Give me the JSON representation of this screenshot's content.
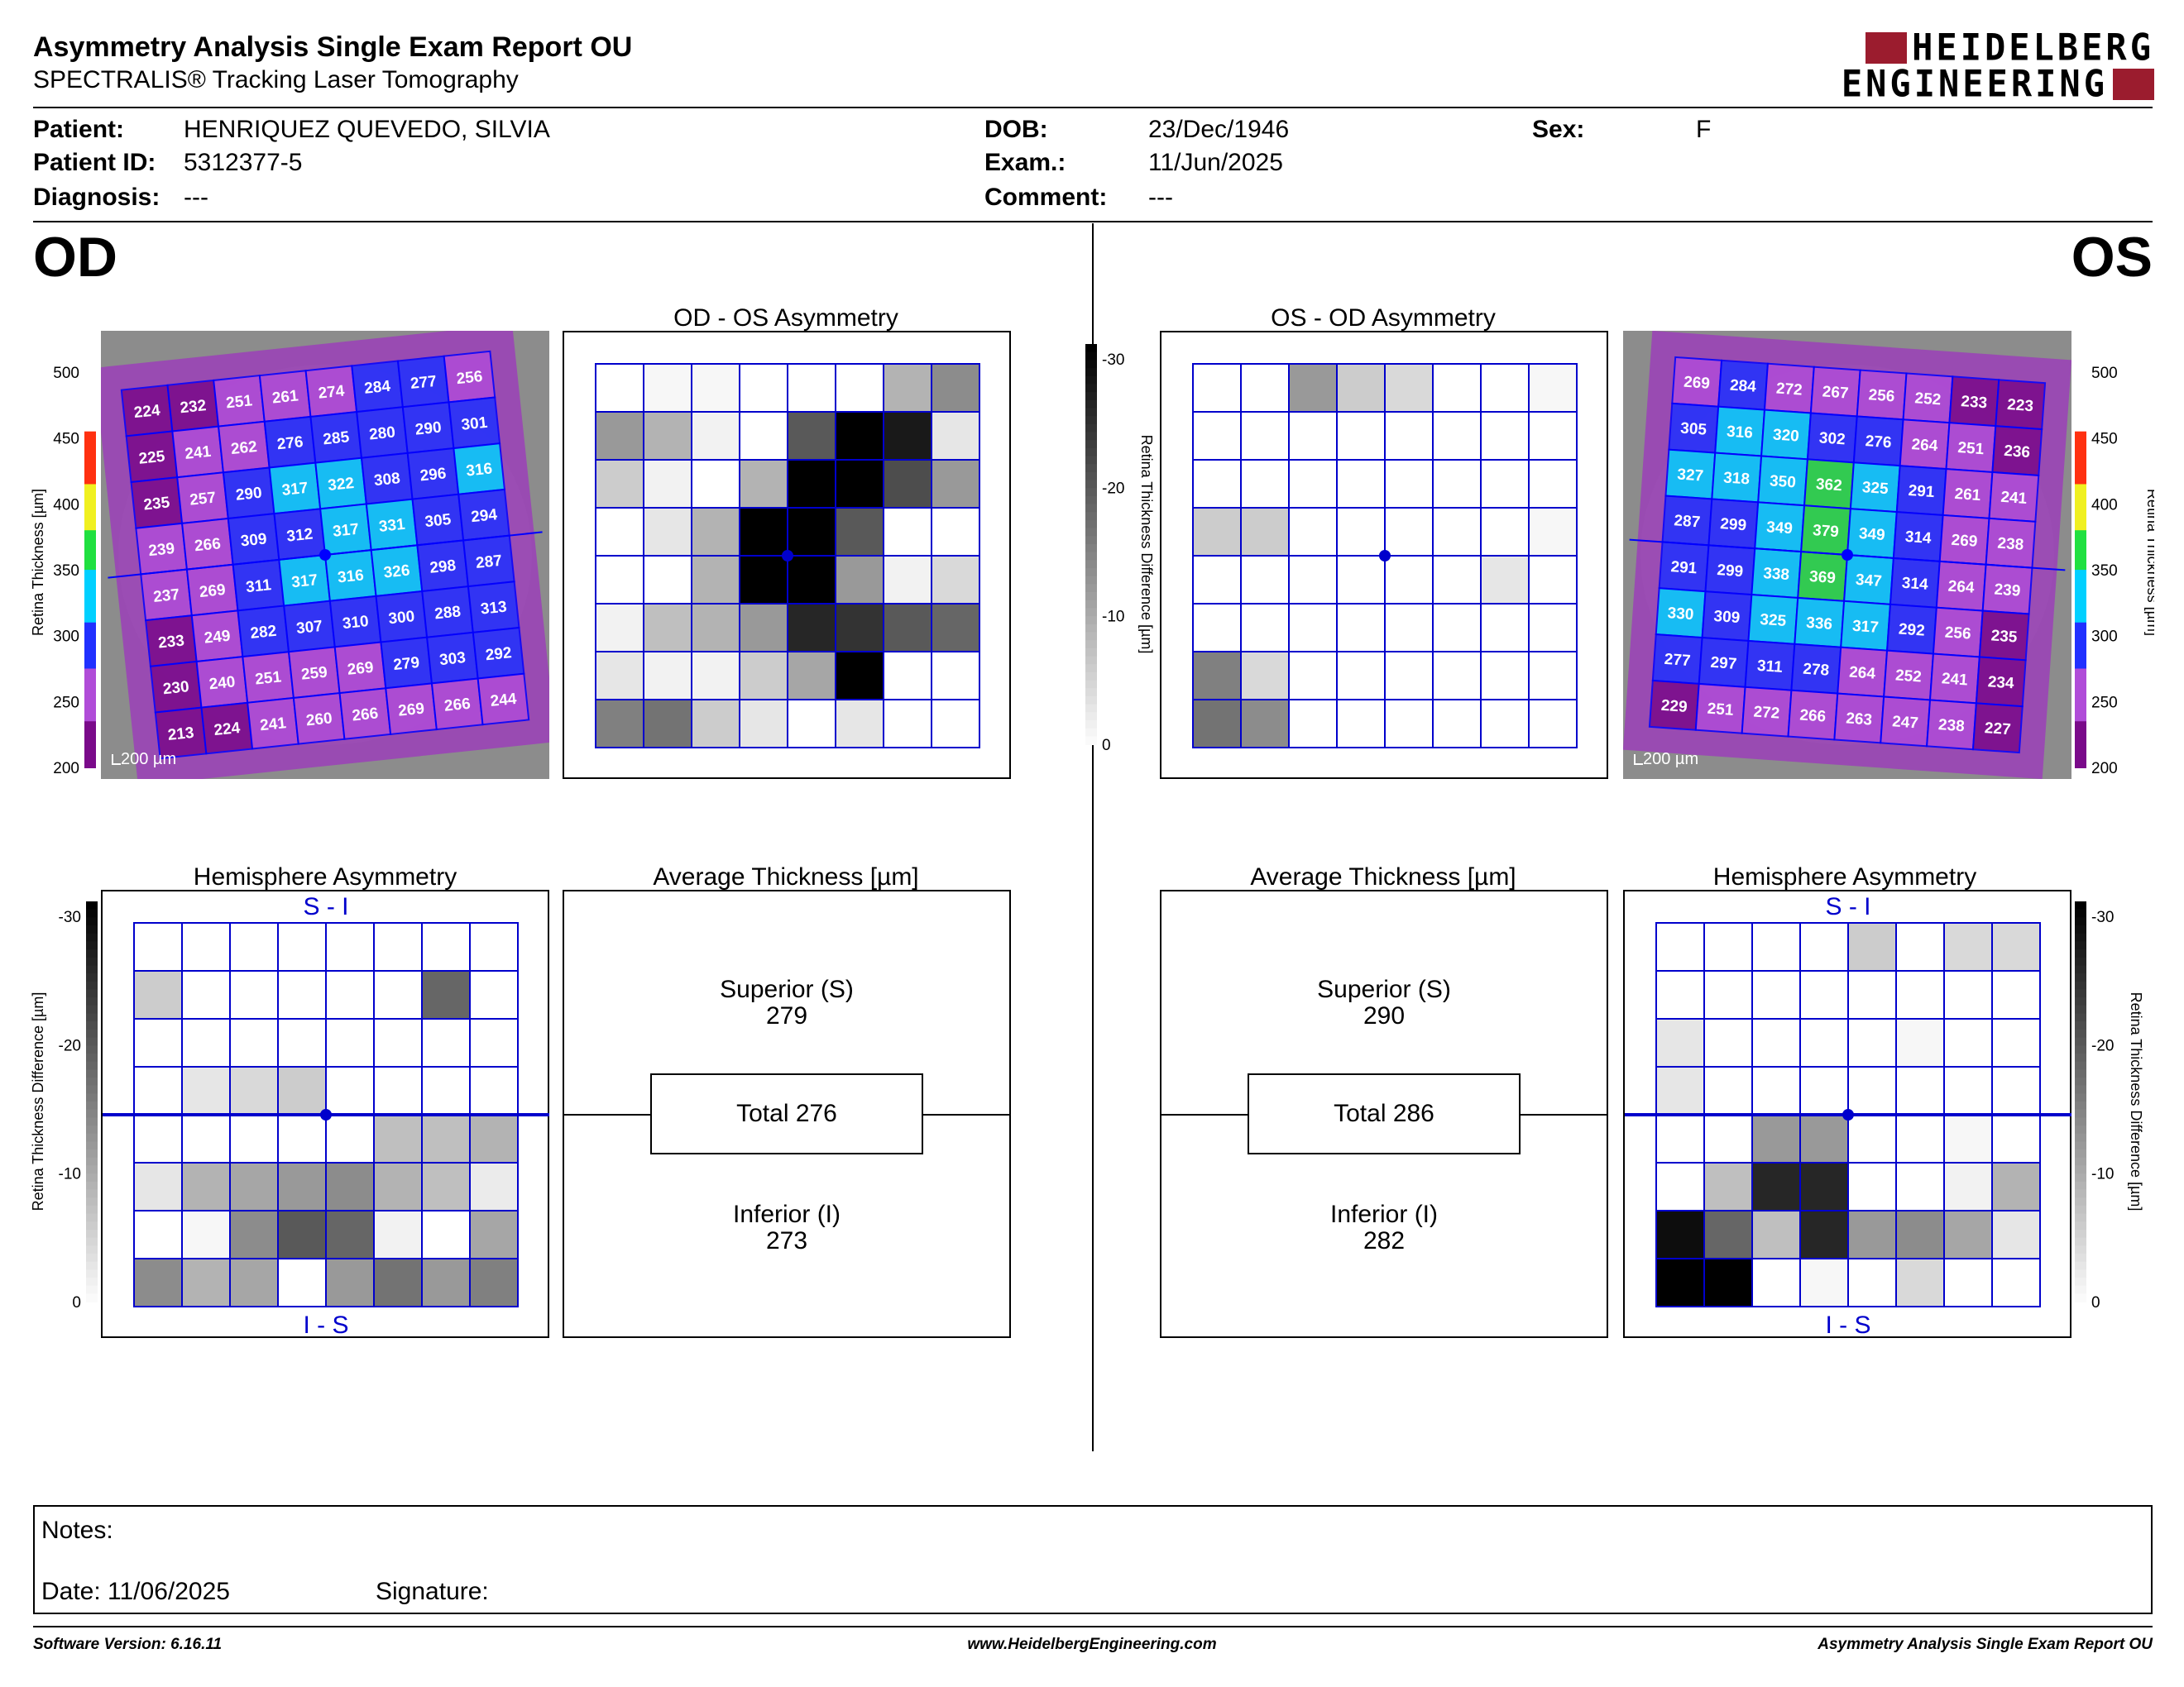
{
  "header": {
    "title": "Asymmetry Analysis Single Exam Report OU",
    "subtitle": "SPECTRALIS® Tracking Laser Tomography",
    "logo_line1": "HEIDELBERG",
    "logo_line2": "ENGINEERING",
    "brand_color": "#9b1c2e"
  },
  "patient": {
    "patient_label": "Patient:",
    "patient_value": "HENRIQUEZ QUEVEDO, SILVIA",
    "id_label": "Patient ID:",
    "id_value": "5312377-5",
    "diagnosis_label": "Diagnosis:",
    "diagnosis_value": "---",
    "dob_label": "DOB:",
    "dob_value": "23/Dec/1946",
    "exam_label": "Exam.:",
    "exam_value": "11/Jun/2025",
    "comment_label": "Comment:",
    "comment_value": "---",
    "sex_label": "Sex:",
    "sex_value": "F"
  },
  "od": {
    "eye_label": "OD",
    "asym_title": "OD - OS Asymmetry",
    "hemi_title": "Hemisphere Asymmetry",
    "avg_title": "Average Thickness [µm]",
    "superior_label": "Superior (S)",
    "superior_value": "279",
    "total_text": "Total 276",
    "inferior_label": "Inferior (I)",
    "inferior_value": "273",
    "si_label": "S - I",
    "is_label": "I - S",
    "scale_text": "200 µm",
    "thickness_grid": [
      [
        "224",
        "232",
        "251",
        "261",
        "274",
        "284",
        "277",
        "256"
      ],
      [
        "225",
        "241",
        "262",
        "276",
        "285",
        "280",
        "290",
        "301"
      ],
      [
        "235",
        "257",
        "290",
        "317",
        "322",
        "308",
        "296",
        "316"
      ],
      [
        "239",
        "266",
        "309",
        "312",
        "317",
        "331",
        "305",
        "294"
      ],
      [
        "237",
        "269",
        "311",
        "317",
        "316",
        "326",
        "298",
        "287"
      ],
      [
        "233",
        "249",
        "282",
        "307",
        "310",
        "300",
        "288",
        "313"
      ],
      [
        "230",
        "240",
        "251",
        "259",
        "269",
        "279",
        "303",
        "292"
      ],
      [
        "213",
        "224",
        "241",
        "260",
        "266",
        "269",
        "266",
        "244"
      ]
    ],
    "asym_gray": [
      [
        0,
        3,
        3,
        0,
        0,
        0,
        30,
        45
      ],
      [
        40,
        30,
        5,
        0,
        65,
        100,
        90,
        10
      ],
      [
        20,
        5,
        0,
        30,
        100,
        100,
        70,
        40
      ],
      [
        0,
        10,
        30,
        100,
        100,
        65,
        0,
        0
      ],
      [
        0,
        0,
        30,
        100,
        100,
        40,
        5,
        15
      ],
      [
        5,
        25,
        30,
        40,
        85,
        80,
        65,
        60
      ],
      [
        10,
        5,
        5,
        20,
        35,
        100,
        0,
        0
      ],
      [
        50,
        55,
        20,
        10,
        0,
        10,
        0,
        0
      ]
    ],
    "hemi_gray": [
      [
        0,
        0,
        0,
        0,
        0,
        0,
        0,
        0
      ],
      [
        20,
        0,
        0,
        0,
        0,
        0,
        60,
        0
      ],
      [
        0,
        0,
        0,
        0,
        0,
        0,
        0,
        0
      ],
      [
        0,
        10,
        15,
        20,
        0,
        0,
        0,
        0
      ],
      [
        0,
        0,
        0,
        0,
        0,
        25,
        25,
        30
      ],
      [
        10,
        30,
        35,
        40,
        45,
        30,
        25,
        8
      ],
      [
        0,
        3,
        45,
        65,
        60,
        5,
        0,
        35
      ],
      [
        45,
        30,
        35,
        0,
        40,
        55,
        40,
        50
      ]
    ]
  },
  "os": {
    "eye_label": "OS",
    "asym_title": "OS - OD Asymmetry",
    "hemi_title": "Hemisphere Asymmetry",
    "avg_title": "Average Thickness [µm]",
    "superior_label": "Superior (S)",
    "superior_value": "290",
    "total_text": "Total 286",
    "inferior_label": "Inferior (I)",
    "inferior_value": "282",
    "si_label": "S - I",
    "is_label": "I - S",
    "scale_text": "200 µm",
    "thickness_grid": [
      [
        "269",
        "284",
        "272",
        "267",
        "256",
        "252",
        "233",
        "223"
      ],
      [
        "305",
        "316",
        "320",
        "302",
        "276",
        "264",
        "251",
        "236"
      ],
      [
        "327",
        "318",
        "350",
        "362",
        "325",
        "291",
        "261",
        "241"
      ],
      [
        "287",
        "299",
        "349",
        "379",
        "349",
        "314",
        "269",
        "238"
      ],
      [
        "291",
        "299",
        "338",
        "369",
        "347",
        "314",
        "264",
        "239"
      ],
      [
        "330",
        "309",
        "325",
        "336",
        "317",
        "292",
        "256",
        "235"
      ],
      [
        "277",
        "297",
        "311",
        "278",
        "264",
        "252",
        "241",
        "234"
      ],
      [
        "229",
        "251",
        "272",
        "266",
        "263",
        "247",
        "238",
        "227"
      ]
    ],
    "asym_gray": [
      [
        0,
        0,
        40,
        20,
        15,
        0,
        0,
        3
      ],
      [
        0,
        0,
        0,
        0,
        0,
        0,
        0,
        0
      ],
      [
        0,
        0,
        0,
        0,
        0,
        0,
        0,
        0
      ],
      [
        20,
        20,
        0,
        0,
        0,
        0,
        0,
        3
      ],
      [
        0,
        0,
        0,
        0,
        0,
        0,
        10,
        0
      ],
      [
        0,
        0,
        0,
        0,
        0,
        0,
        0,
        0
      ],
      [
        50,
        15,
        0,
        0,
        0,
        0,
        0,
        0
      ],
      [
        55,
        45,
        0,
        0,
        0,
        0,
        0,
        0
      ]
    ],
    "hemi_gray": [
      [
        0,
        0,
        0,
        0,
        20,
        0,
        15,
        15
      ],
      [
        0,
        0,
        0,
        0,
        0,
        0,
        0,
        0
      ],
      [
        10,
        0,
        0,
        0,
        0,
        3,
        0,
        0
      ],
      [
        10,
        0,
        0,
        0,
        0,
        0,
        0,
        0
      ],
      [
        0,
        0,
        40,
        40,
        0,
        0,
        3,
        0
      ],
      [
        0,
        25,
        85,
        85,
        0,
        0,
        5,
        30
      ],
      [
        95,
        60,
        25,
        85,
        40,
        45,
        35,
        10
      ],
      [
        100,
        100,
        0,
        3,
        0,
        15,
        0,
        0
      ]
    ]
  },
  "colorbar": {
    "thickness_label": "Retina  Thickness [µm]",
    "thickness_ticks": [
      "500",
      "450",
      "400",
      "350",
      "300",
      "250",
      "200"
    ],
    "diff_label": "Retina Thickness Difference [µm]",
    "diff_ticks": [
      "-30",
      "-20",
      "-10",
      "0"
    ]
  },
  "notes": {
    "notes_label": "Notes:",
    "date_label": "Date: 11/06/2025",
    "signature_label": "Signature:"
  },
  "footer": {
    "software": "Software Version: 6.16.11",
    "website": "www.HeidelbergEngineering.com",
    "report_name": "Asymmetry Analysis Single Exam Report OU"
  }
}
